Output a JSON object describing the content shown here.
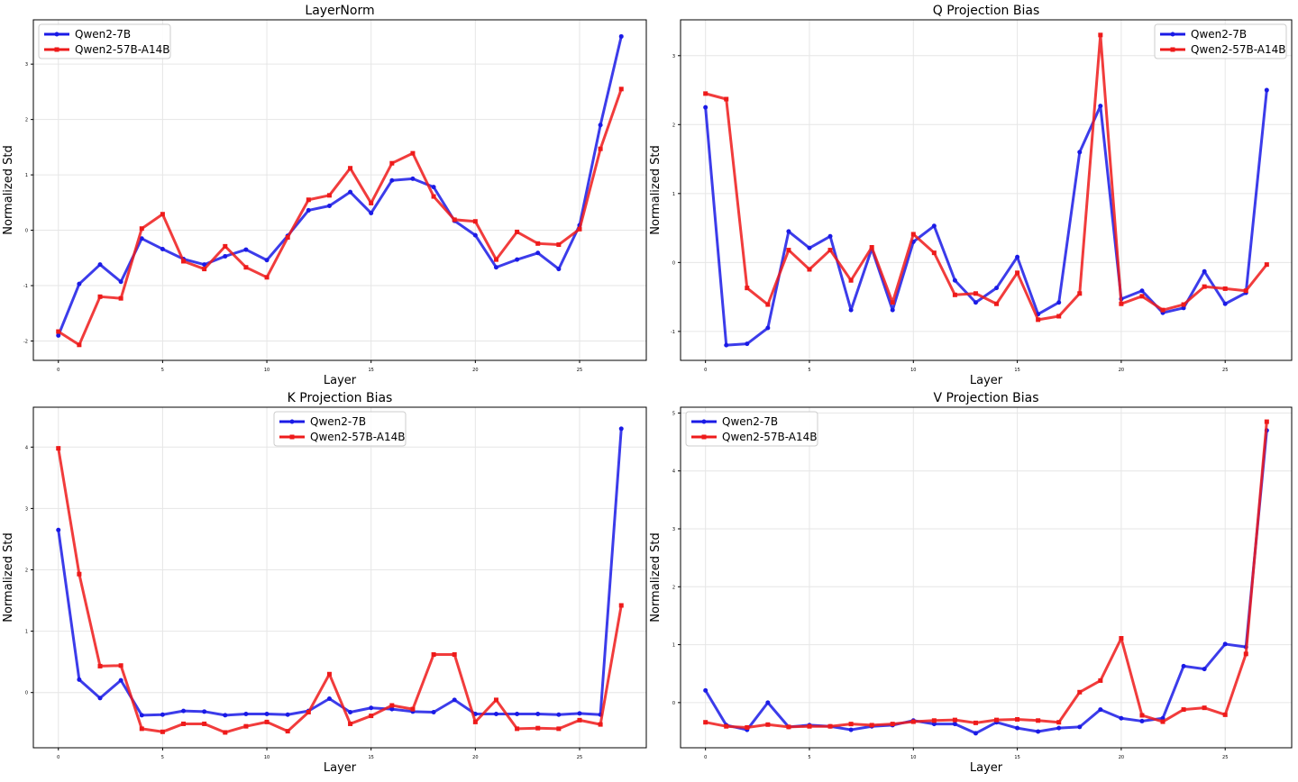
{
  "colors": {
    "series_a": "#1a1ae6",
    "series_b": "#ee1a1a",
    "grid": "#e6e6e6",
    "axis": "#000000"
  },
  "chart_data": [
    {
      "type": "line",
      "title": "LayerNorm",
      "xlabel": "Layer",
      "ylabel": "Normalized Std",
      "xlim": [
        -1.2,
        28.2
      ],
      "ylim": [
        -2.35,
        3.8
      ],
      "xticks": [
        0,
        5,
        10,
        15,
        20,
        25
      ],
      "yticks": [
        -2,
        -1,
        0,
        1,
        2,
        3
      ],
      "grid": true,
      "legend_position": "top-left",
      "x": [
        0,
        1,
        2,
        3,
        4,
        5,
        6,
        7,
        8,
        9,
        10,
        11,
        12,
        13,
        14,
        15,
        16,
        17,
        18,
        19,
        20,
        21,
        22,
        23,
        24,
        25,
        26,
        27
      ],
      "series": [
        {
          "name": "Qwen2-7B",
          "marker": "circle",
          "values": [
            -1.9,
            -0.97,
            -0.62,
            -0.93,
            -0.15,
            -0.34,
            -0.52,
            -0.62,
            -0.47,
            -0.35,
            -0.54,
            -0.1,
            0.36,
            0.44,
            0.69,
            0.31,
            0.9,
            0.93,
            0.78,
            0.17,
            -0.09,
            -0.67,
            -0.53,
            -0.41,
            -0.7,
            0.09,
            1.9,
            3.5
          ]
        },
        {
          "name": "Qwen2-57B-A14B",
          "marker": "square",
          "values": [
            -1.83,
            -2.07,
            -1.2,
            -1.23,
            0.03,
            0.29,
            -0.56,
            -0.7,
            -0.29,
            -0.67,
            -0.85,
            -0.13,
            0.55,
            0.63,
            1.12,
            0.49,
            1.21,
            1.39,
            0.61,
            0.19,
            0.16,
            -0.53,
            -0.03,
            -0.24,
            -0.26,
            0.02,
            1.47,
            2.55
          ]
        }
      ]
    },
    {
      "type": "line",
      "title": "Q Projection Bias",
      "xlabel": "Layer",
      "ylabel": "Normalized Std",
      "xlim": [
        -1.2,
        28.2
      ],
      "ylim": [
        -1.42,
        3.52
      ],
      "xticks": [
        0,
        5,
        10,
        15,
        20,
        25
      ],
      "yticks": [
        -1,
        0,
        1,
        2,
        3
      ],
      "grid": true,
      "legend_position": "top-right",
      "x": [
        0,
        1,
        2,
        3,
        4,
        5,
        6,
        7,
        8,
        9,
        10,
        11,
        12,
        13,
        14,
        15,
        16,
        17,
        18,
        19,
        20,
        21,
        22,
        23,
        24,
        25,
        26,
        27
      ],
      "series": [
        {
          "name": "Qwen2-7B",
          "marker": "circle",
          "values": [
            2.25,
            -1.2,
            -1.18,
            -0.95,
            0.45,
            0.21,
            0.38,
            -0.69,
            0.2,
            -0.69,
            0.3,
            0.53,
            -0.26,
            -0.58,
            -0.37,
            0.08,
            -0.75,
            -0.58,
            1.6,
            2.27,
            -0.53,
            -0.41,
            -0.73,
            -0.66,
            -0.13,
            -0.6,
            -0.44,
            2.5
          ]
        },
        {
          "name": "Qwen2-57B-A14B",
          "marker": "square",
          "values": [
            2.45,
            2.37,
            -0.37,
            -0.61,
            0.18,
            -0.1,
            0.18,
            -0.26,
            0.22,
            -0.58,
            0.41,
            0.14,
            -0.47,
            -0.45,
            -0.6,
            -0.15,
            -0.83,
            -0.78,
            -0.45,
            3.3,
            -0.6,
            -0.49,
            -0.69,
            -0.61,
            -0.35,
            -0.38,
            -0.41,
            -0.03
          ]
        }
      ]
    },
    {
      "type": "line",
      "title": "K Projection Bias",
      "xlabel": "Layer",
      "ylabel": "Normalized Std",
      "xlim": [
        -1.2,
        28.2
      ],
      "ylim": [
        -0.9,
        4.65
      ],
      "xticks": [
        0,
        5,
        10,
        15,
        20,
        25
      ],
      "yticks": [
        0,
        1,
        2,
        3,
        4
      ],
      "grid": true,
      "legend_position": "top-center",
      "x": [
        0,
        1,
        2,
        3,
        4,
        5,
        6,
        7,
        8,
        9,
        10,
        11,
        12,
        13,
        14,
        15,
        16,
        17,
        18,
        19,
        20,
        21,
        22,
        23,
        24,
        25,
        26,
        27
      ],
      "series": [
        {
          "name": "Qwen2-7B",
          "marker": "circle",
          "values": [
            2.65,
            0.21,
            -0.09,
            0.2,
            -0.37,
            -0.36,
            -0.3,
            -0.31,
            -0.37,
            -0.35,
            -0.35,
            -0.36,
            -0.3,
            -0.1,
            -0.32,
            -0.25,
            -0.27,
            -0.31,
            -0.32,
            -0.12,
            -0.35,
            -0.35,
            -0.35,
            -0.35,
            -0.36,
            -0.34,
            -0.36,
            4.3
          ]
        },
        {
          "name": "Qwen2-57B-A14B",
          "marker": "square",
          "values": [
            3.98,
            1.93,
            0.43,
            0.44,
            -0.59,
            -0.64,
            -0.51,
            -0.51,
            -0.65,
            -0.55,
            -0.48,
            -0.63,
            -0.32,
            0.3,
            -0.51,
            -0.38,
            -0.21,
            -0.27,
            0.62,
            0.62,
            -0.48,
            -0.12,
            -0.59,
            -0.58,
            -0.59,
            -0.45,
            -0.52,
            1.42
          ]
        }
      ]
    },
    {
      "type": "line",
      "title": "V Projection Bias",
      "xlabel": "Layer",
      "ylabel": "Normalized Std",
      "xlim": [
        -1.2,
        28.2
      ],
      "ylim": [
        -0.78,
        5.1
      ],
      "xticks": [
        0,
        5,
        10,
        15,
        20,
        25
      ],
      "yticks": [
        0,
        1,
        2,
        3,
        4,
        5
      ],
      "grid": true,
      "legend_position": "top-left",
      "x": [
        0,
        1,
        2,
        3,
        4,
        5,
        6,
        7,
        8,
        9,
        10,
        11,
        12,
        13,
        14,
        15,
        16,
        17,
        18,
        19,
        20,
        21,
        22,
        23,
        24,
        25,
        26,
        27
      ],
      "series": [
        {
          "name": "Qwen2-7B",
          "marker": "circle",
          "values": [
            0.21,
            -0.39,
            -0.47,
            0.0,
            -0.42,
            -0.39,
            -0.41,
            -0.47,
            -0.41,
            -0.39,
            -0.31,
            -0.37,
            -0.37,
            -0.53,
            -0.34,
            -0.44,
            -0.5,
            -0.44,
            -0.42,
            -0.12,
            -0.27,
            -0.32,
            -0.27,
            0.63,
            0.58,
            1.01,
            0.96,
            4.7
          ]
        },
        {
          "name": "Qwen2-57B-A14B",
          "marker": "square",
          "values": [
            -0.34,
            -0.41,
            -0.43,
            -0.38,
            -0.42,
            -0.41,
            -0.41,
            -0.37,
            -0.39,
            -0.37,
            -0.33,
            -0.31,
            -0.3,
            -0.35,
            -0.3,
            -0.29,
            -0.31,
            -0.34,
            0.18,
            0.38,
            1.11,
            -0.22,
            -0.33,
            -0.12,
            -0.09,
            -0.21,
            0.84,
            4.85
          ]
        }
      ]
    }
  ]
}
